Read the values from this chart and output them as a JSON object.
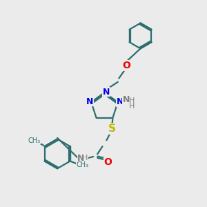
{
  "background_color": "#ebebeb",
  "bond_color": "#2d6e6e",
  "N_color": "#0000ee",
  "O_color": "#ee0000",
  "S_color": "#bbbb00",
  "H_color": "#808080",
  "figsize": [
    3.0,
    3.0
  ],
  "dpi": 100,
  "xlim": [
    0,
    10
  ],
  "ylim": [
    0,
    10
  ]
}
